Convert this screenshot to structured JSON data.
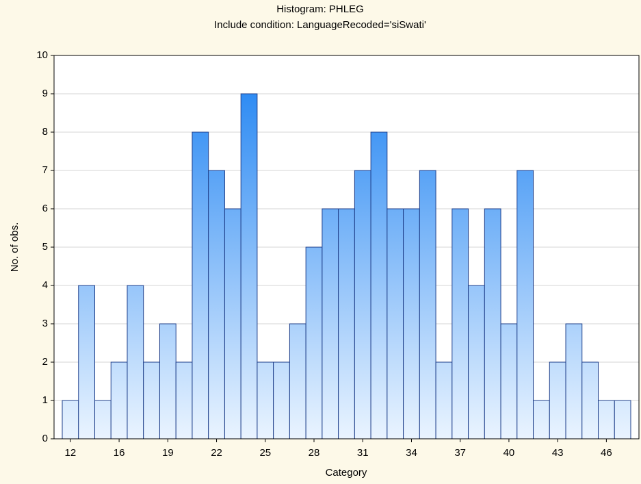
{
  "chart_data": {
    "type": "bar",
    "title": "Histogram: PHLEG",
    "subtitle": "Include condition: LanguageRecoded='siSwati'",
    "x_label": "Category",
    "y_label": "No. of obs.",
    "categories": [
      "12",
      null,
      null,
      "16",
      null,
      null,
      "19",
      null,
      null,
      "22",
      null,
      null,
      "25",
      null,
      null,
      "28",
      null,
      null,
      "31",
      null,
      null,
      "34",
      null,
      null,
      "37",
      null,
      null,
      "40",
      null,
      null,
      "43",
      null,
      null,
      "46",
      null
    ],
    "values": [
      1,
      4,
      1,
      2,
      4,
      2,
      3,
      2,
      8,
      7,
      6,
      9,
      2,
      2,
      3,
      5,
      6,
      6,
      7,
      8,
      6,
      6,
      7,
      2,
      6,
      4,
      6,
      3,
      7,
      1,
      2,
      3,
      2,
      1,
      1
    ],
    "color": "#1a80f2",
    "ylim": [
      0,
      10
    ],
    "yticks": [
      0,
      1,
      2,
      3,
      4,
      5,
      6,
      7,
      8,
      9,
      10
    ],
    "grid": true
  }
}
